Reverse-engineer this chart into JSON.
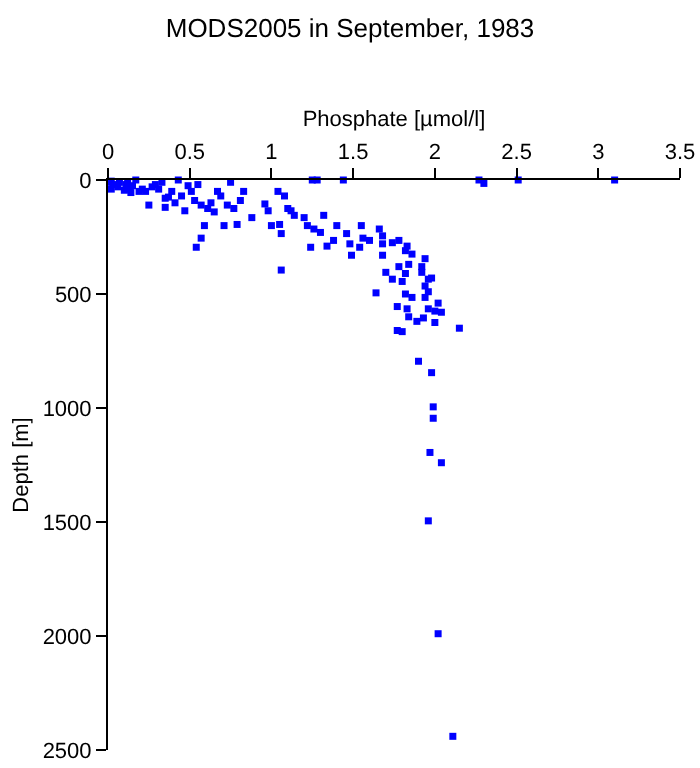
{
  "chart_data": {
    "type": "scatter",
    "title": "MODS2005 in September, 1983",
    "xlabel": "Phosphate [µmol/l]",
    "ylabel": "Depth [m]",
    "color": "#0000ff",
    "marker": "square",
    "xlim": [
      0,
      3.5
    ],
    "xticks": [
      0,
      0.5,
      1,
      1.5,
      2,
      2.5,
      3,
      3.5
    ],
    "ylim": [
      2500,
      0
    ],
    "yticks": [
      0,
      500,
      1000,
      1500,
      2000,
      2500
    ],
    "x": [
      0.01,
      0.03,
      0.07,
      0.11,
      0.13,
      0.15,
      0.17,
      0.19,
      0.21,
      0.23,
      0.25,
      0.27,
      0.29,
      0.31,
      0.33,
      0.35,
      0.35,
      0.37,
      0.39,
      0.41,
      0.43,
      0.45,
      0.47,
      0.49,
      0.51,
      0.53,
      0.55,
      0.57,
      0.59,
      0.57,
      0.54,
      0.61,
      0.63,
      0.65,
      0.67,
      0.69,
      0.71,
      0.73,
      0.75,
      0.77,
      0.79,
      0.81,
      0.83,
      0.88,
      0.96,
      0.98,
      1.0,
      1.04,
      1.05,
      1.06,
      1.06,
      1.08,
      1.1,
      1.12,
      1.14,
      1.2,
      1.22,
      1.24,
      1.26,
      1.25,
      1.28,
      1.3,
      1.32,
      1.34,
      1.38,
      1.4,
      1.44,
      1.46,
      1.48,
      1.49,
      1.55,
      1.66,
      1.56,
      1.6,
      1.68,
      1.54,
      1.68,
      1.74,
      1.78,
      1.83,
      1.86,
      1.82,
      1.68,
      1.94,
      1.92,
      1.78,
      1.84,
      1.7,
      1.74,
      1.8,
      1.82,
      1.92,
      1.96,
      1.98,
      1.94,
      1.96,
      1.94,
      1.86,
      1.82,
      1.64,
      2.02,
      1.77,
      1.83,
      1.96,
      2.0,
      2.04,
      1.84,
      1.89,
      1.93,
      2.0,
      1.77,
      1.8,
      2.15,
      1.9,
      1.98,
      1.99,
      1.99,
      1.97,
      2.04,
      1.96,
      2.02,
      2.11,
      2.27,
      2.3,
      2.51,
      3.1,
      0.02,
      0.06,
      0.1,
      0.12,
      0.14,
      0.02
    ],
    "values": [
      10,
      20,
      10,
      20,
      40,
      25,
      0,
      50,
      40,
      50,
      110,
      30,
      20,
      40,
      10,
      80,
      120,
      75,
      50,
      100,
      0,
      70,
      135,
      25,
      50,
      90,
      20,
      110,
      200,
      255,
      295,
      125,
      100,
      140,
      50,
      70,
      200,
      110,
      10,
      125,
      195,
      90,
      50,
      165,
      105,
      135,
      200,
      50,
      195,
      235,
      395,
      70,
      125,
      135,
      155,
      165,
      200,
      295,
      215,
      0,
      0,
      230,
      155,
      290,
      265,
      200,
      0,
      235,
      280,
      330,
      200,
      215,
      255,
      265,
      245,
      295,
      280,
      275,
      265,
      290,
      325,
      310,
      330,
      345,
      380,
      380,
      370,
      405,
      435,
      445,
      410,
      405,
      435,
      430,
      465,
      490,
      515,
      515,
      500,
      495,
      540,
      555,
      565,
      565,
      575,
      580,
      600,
      620,
      605,
      625,
      660,
      665,
      650,
      795,
      845,
      995,
      1045,
      1195,
      1240,
      1495,
      1990,
      2440,
      0,
      15,
      0,
      0,
      5,
      30,
      45,
      10,
      55,
      40
    ]
  }
}
